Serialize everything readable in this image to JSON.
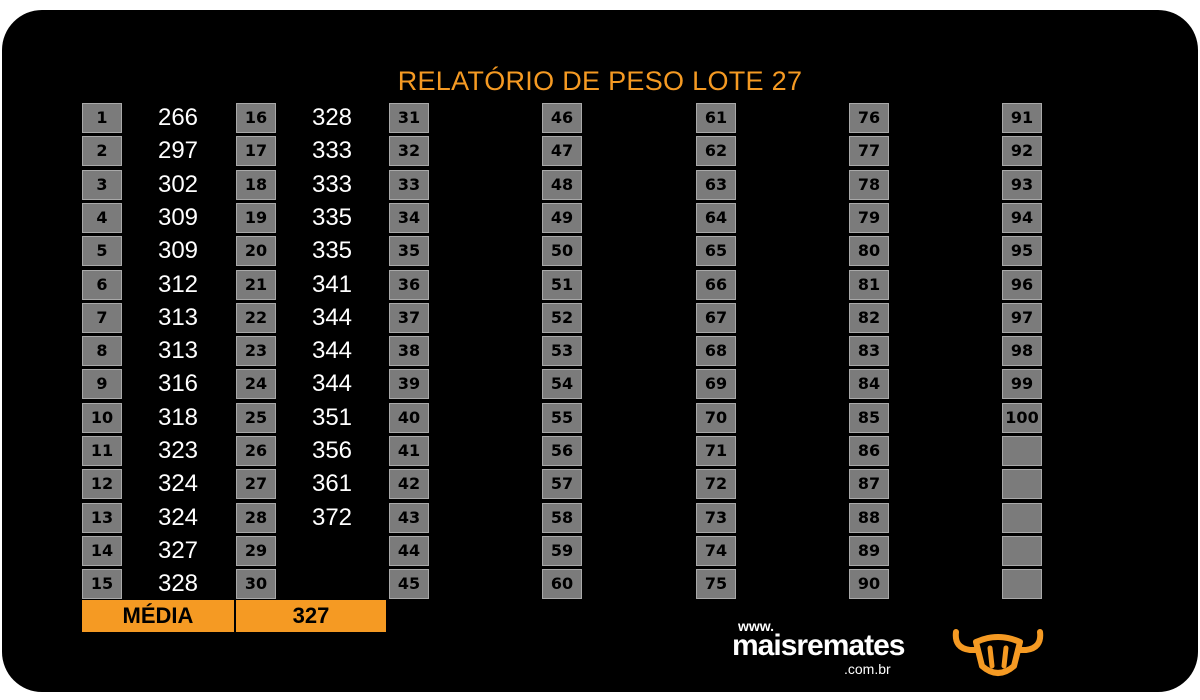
{
  "title": "RELATÓRIO DE PESO LOTE 27",
  "columns": [
    {
      "numbers": [
        "1",
        "2",
        "3",
        "4",
        "5",
        "6",
        "7",
        "8",
        "9",
        "10",
        "11",
        "12",
        "13",
        "14",
        "15"
      ],
      "values": [
        "266",
        "297",
        "302",
        "309",
        "309",
        "312",
        "313",
        "313",
        "316",
        "318",
        "323",
        "324",
        "324",
        "327",
        "328"
      ]
    },
    {
      "numbers": [
        "16",
        "17",
        "18",
        "19",
        "20",
        "21",
        "22",
        "23",
        "24",
        "25",
        "26",
        "27",
        "28",
        "29",
        "30"
      ],
      "values": [
        "328",
        "333",
        "333",
        "335",
        "335",
        "341",
        "344",
        "344",
        "344",
        "351",
        "356",
        "361",
        "372",
        "",
        ""
      ]
    },
    {
      "numbers": [
        "31",
        "32",
        "33",
        "34",
        "35",
        "36",
        "37",
        "38",
        "39",
        "40",
        "41",
        "42",
        "43",
        "44",
        "45"
      ],
      "values": []
    },
    {
      "numbers": [
        "46",
        "47",
        "48",
        "49",
        "50",
        "51",
        "52",
        "53",
        "54",
        "55",
        "56",
        "57",
        "58",
        "59",
        "60"
      ],
      "values": []
    },
    {
      "numbers": [
        "61",
        "62",
        "63",
        "64",
        "65",
        "66",
        "67",
        "68",
        "69",
        "70",
        "71",
        "72",
        "73",
        "74",
        "75"
      ],
      "values": []
    },
    {
      "numbers": [
        "76",
        "77",
        "78",
        "79",
        "80",
        "81",
        "82",
        "83",
        "84",
        "85",
        "86",
        "87",
        "88",
        "89",
        "90"
      ],
      "values": []
    },
    {
      "numbers": [
        "91",
        "92",
        "93",
        "94",
        "95",
        "96",
        "97",
        "98",
        "99",
        "100",
        "",
        "",
        "",
        "",
        ""
      ],
      "values": []
    }
  ],
  "summary": {
    "label": "MÉDIA",
    "value": "327"
  },
  "logo": {
    "www": "www.",
    "name": "maisremates",
    "domain": ".com.br",
    "icon": "bull-head-icon"
  },
  "colors": {
    "background": "#000000",
    "accent": "#f59a23",
    "cell": "#7b7b7b",
    "value_text": "#ffffff"
  }
}
